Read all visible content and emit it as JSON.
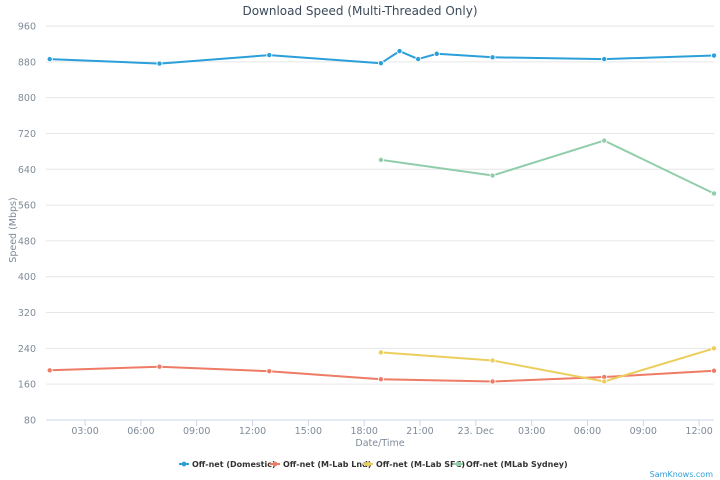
{
  "chart_data": {
    "type": "line",
    "title": "Download Speed (Multi-Threaded Only)",
    "xlabel": "Date/Time",
    "ylabel": "Speed (Mbps)",
    "ylim": [
      80,
      960
    ],
    "yticks": [
      80,
      160,
      240,
      320,
      400,
      480,
      560,
      640,
      720,
      800,
      880,
      960
    ],
    "xlim": [
      0.9,
      36.8
    ],
    "xticks": [
      {
        "x": 3,
        "label": "03:00"
      },
      {
        "x": 6,
        "label": "06:00"
      },
      {
        "x": 9,
        "label": "09:00"
      },
      {
        "x": 12,
        "label": "12:00"
      },
      {
        "x": 15,
        "label": "15:00"
      },
      {
        "x": 18,
        "label": "18:00"
      },
      {
        "x": 21,
        "label": "21:00"
      },
      {
        "x": 24,
        "label": "23. Dec"
      },
      {
        "x": 27,
        "label": "03:00"
      },
      {
        "x": 30,
        "label": "06:00"
      },
      {
        "x": 33,
        "label": "09:00"
      },
      {
        "x": 36,
        "label": "12:00"
      }
    ],
    "grid": true,
    "legend_position": "bottom",
    "series": [
      {
        "name": "Off-net (Domestic)",
        "color": "#2b9fd9",
        "points": [
          [
            1.1,
            886
          ],
          [
            7.0,
            876
          ],
          [
            12.9,
            895
          ],
          [
            18.9,
            877
          ],
          [
            19.9,
            904
          ],
          [
            20.9,
            886
          ],
          [
            21.9,
            898
          ],
          [
            24.9,
            890
          ],
          [
            30.9,
            886
          ],
          [
            36.8,
            894
          ]
        ]
      },
      {
        "name": "Off-net (M-Lab Lnd)",
        "color": "#ee7b65",
        "points": [
          [
            1.1,
            191
          ],
          [
            7.0,
            199
          ],
          [
            12.9,
            189
          ],
          [
            18.9,
            171
          ],
          [
            24.9,
            166
          ],
          [
            30.9,
            176
          ],
          [
            36.8,
            190
          ]
        ]
      },
      {
        "name": "Off-net (M-Lab SFC)",
        "color": "#ecce5c",
        "points": [
          [
            18.9,
            231
          ],
          [
            24.9,
            213
          ],
          [
            30.9,
            166
          ],
          [
            36.8,
            240
          ]
        ]
      },
      {
        "name": "Off-net (MLab Sydney)",
        "color": "#8fcdab",
        "points": [
          [
            18.9,
            661
          ],
          [
            24.9,
            626
          ],
          [
            30.9,
            704
          ],
          [
            36.8,
            586
          ]
        ]
      }
    ]
  },
  "credits": "SamKnows.com"
}
